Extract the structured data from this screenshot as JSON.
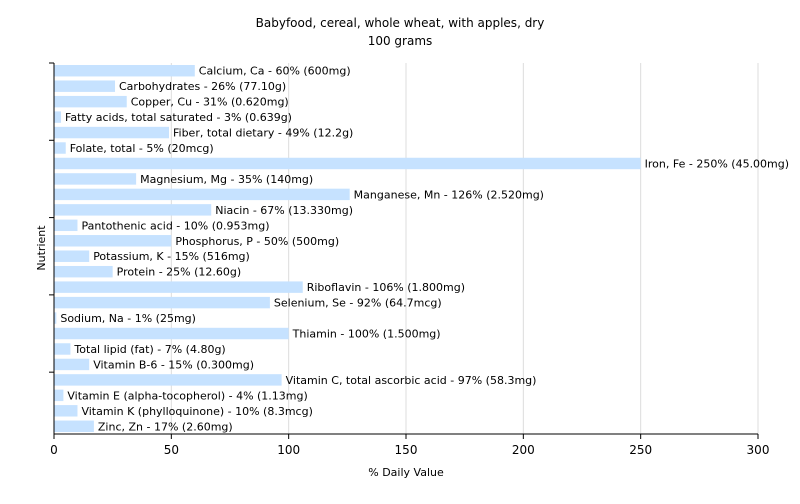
{
  "chart_data": {
    "type": "bar",
    "orientation": "horizontal",
    "title": "Babyfood, cereal, whole wheat, with apples, dry",
    "subtitle": "100 grams",
    "xlabel": "% Daily Value",
    "ylabel": "Nutrient",
    "xlim": [
      0,
      300
    ],
    "xticks": [
      0,
      50,
      100,
      150,
      200,
      250,
      300
    ],
    "grid": true,
    "bar_color": "#c6e2ff",
    "bars": [
      {
        "label": "Calcium, Ca - 60% (600mg)",
        "value": 60
      },
      {
        "label": "Carbohydrates - 26% (77.10g)",
        "value": 26
      },
      {
        "label": "Copper, Cu - 31% (0.620mg)",
        "value": 31
      },
      {
        "label": "Fatty acids, total saturated - 3% (0.639g)",
        "value": 3
      },
      {
        "label": "Fiber, total dietary - 49% (12.2g)",
        "value": 49
      },
      {
        "label": "Folate, total - 5% (20mcg)",
        "value": 5
      },
      {
        "label": "Iron, Fe - 250% (45.00mg)",
        "value": 250
      },
      {
        "label": "Magnesium, Mg - 35% (140mg)",
        "value": 35
      },
      {
        "label": "Manganese, Mn - 126% (2.520mg)",
        "value": 126
      },
      {
        "label": "Niacin - 67% (13.330mg)",
        "value": 67
      },
      {
        "label": "Pantothenic acid - 10% (0.953mg)",
        "value": 10
      },
      {
        "label": "Phosphorus, P - 50% (500mg)",
        "value": 50
      },
      {
        "label": "Potassium, K - 15% (516mg)",
        "value": 15
      },
      {
        "label": "Protein - 25% (12.60g)",
        "value": 25
      },
      {
        "label": "Riboflavin - 106% (1.800mg)",
        "value": 106
      },
      {
        "label": "Selenium, Se - 92% (64.7mcg)",
        "value": 92
      },
      {
        "label": "Sodium, Na - 1% (25mg)",
        "value": 1
      },
      {
        "label": "Thiamin - 100% (1.500mg)",
        "value": 100
      },
      {
        "label": "Total lipid (fat) - 7% (4.80g)",
        "value": 7
      },
      {
        "label": "Vitamin B-6 - 15% (0.300mg)",
        "value": 15
      },
      {
        "label": "Vitamin C, total ascorbic acid - 97% (58.3mg)",
        "value": 97
      },
      {
        "label": "Vitamin E (alpha-tocopherol) - 4% (1.13mg)",
        "value": 4
      },
      {
        "label": "Vitamin K (phylloquinone) - 10% (8.3mcg)",
        "value": 10
      },
      {
        "label": "Zinc, Zn - 17% (2.60mg)",
        "value": 17
      }
    ]
  }
}
